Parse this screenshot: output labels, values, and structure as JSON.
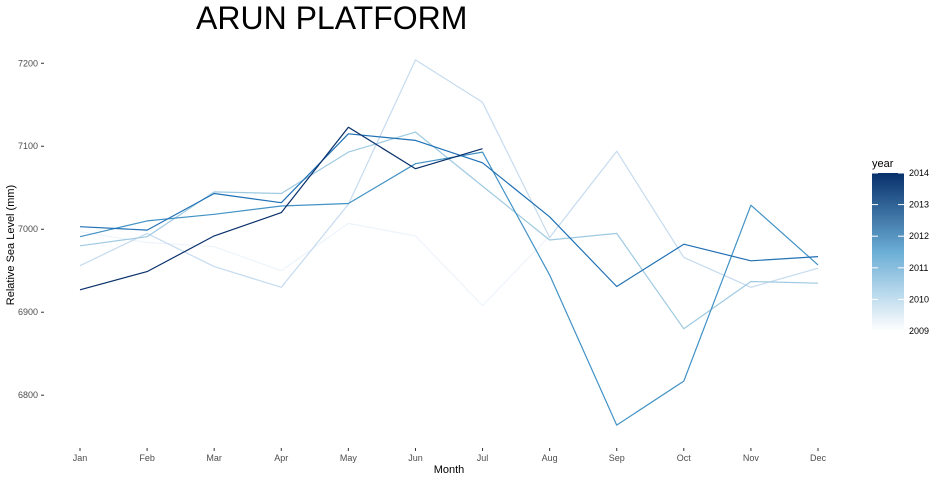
{
  "chart_data": {
    "type": "line",
    "title": "ARUN PLATFORM",
    "xlabel": "Month",
    "ylabel": "Relative Sea Level (mm)",
    "categories": [
      "Jan",
      "Feb",
      "Mar",
      "Apr",
      "May",
      "Jun",
      "Jul",
      "Aug",
      "Sep",
      "Oct",
      "Nov",
      "Dec"
    ],
    "ylim": [
      6740,
      7222
    ],
    "yticks": [
      6800,
      6900,
      7000,
      7100,
      7200
    ],
    "grid": false,
    "legend": {
      "title": "year",
      "position": "right",
      "type": "colorbar",
      "range": [
        2009,
        2014
      ],
      "ticks": [
        "2009",
        "2010",
        "2011",
        "2012",
        "2013",
        "2014"
      ],
      "colors": [
        "#ffffff",
        "#08306b"
      ]
    },
    "series": [
      {
        "name": "2009",
        "color": "#eef4fb",
        "values": [
          6997,
          6984,
          6979,
          6950,
          7007,
          6992,
          6908,
          6992,
          null,
          null,
          null,
          6892
        ]
      },
      {
        "name": "2010",
        "color": "#c6dbef",
        "values": [
          6956,
          6995,
          6955,
          6930,
          7030,
          7204,
          7153,
          6990,
          7094,
          6966,
          6930,
          6953
        ]
      },
      {
        "name": "2011",
        "color": "#9ecae1",
        "values": [
          6980,
          6991,
          7045,
          7043,
          7093,
          7117,
          7052,
          6987,
          6995,
          6880,
          6937,
          6935
        ]
      },
      {
        "name": "2012",
        "color": "#4292c6",
        "values": [
          6991,
          7010,
          7018,
          7028,
          7031,
          7079,
          7093,
          6945,
          6764,
          6817,
          7029,
          6957
        ]
      },
      {
        "name": "2013",
        "color": "#2171b5",
        "values": [
          7003,
          6999,
          7043,
          7032,
          7115,
          7107,
          7080,
          7015,
          6931,
          6982,
          6962,
          6967
        ]
      },
      {
        "name": "2014",
        "color": "#08306b",
        "values": [
          6927,
          6949,
          6992,
          7020,
          7123,
          7073,
          7097,
          null,
          null,
          null,
          null,
          null
        ]
      }
    ]
  }
}
